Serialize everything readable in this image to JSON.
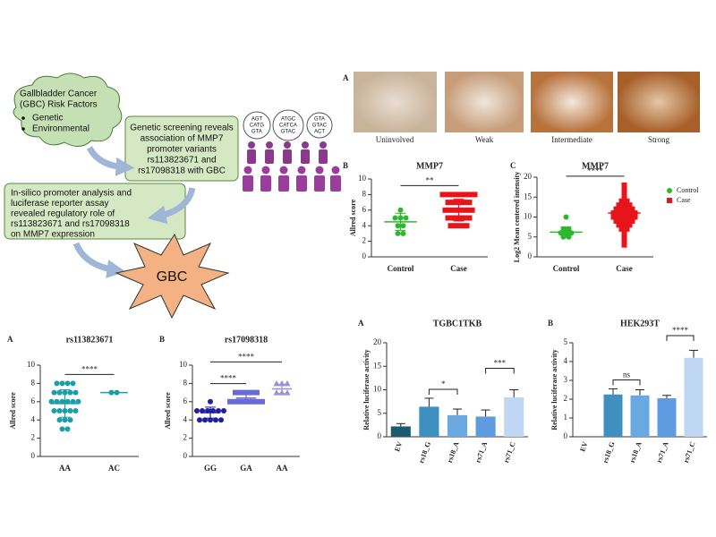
{
  "diagram": {
    "risk_factors": {
      "lines": [
        "Gallbladder Cancer",
        "(GBC) Risk Factors"
      ],
      "bullets": [
        "Genetic",
        "Environmental"
      ]
    },
    "screening": [
      "Genetic screening reveals",
      "association of MMP7",
      "promoter variants",
      "rs113823671 and",
      "rs17098318 with GBC"
    ],
    "assay": [
      "In-silico promoter analysis and",
      "luciferase reporter assay",
      "revealed regulatory role of",
      "rs113823671 and rs17098318",
      "on MMP7 expression"
    ],
    "outcome": "GBC",
    "dna": [
      [
        "AGT",
        "CATG",
        "GTA"
      ],
      [
        "ATGC",
        "CATCA",
        "GTAC"
      ],
      [
        "GTA",
        "GTAC",
        "ACT"
      ]
    ]
  },
  "ihc": {
    "panel": "A",
    "labels": [
      "Uninvolved",
      "Weak",
      "Intermediate",
      "Strong"
    ]
  },
  "chart_data": [
    {
      "type": "strip",
      "panel": "B",
      "title": "MMP7",
      "ylabel": "Allred score",
      "ylim": [
        0,
        10
      ],
      "yticks": [
        0,
        2,
        4,
        6,
        8,
        10
      ],
      "groups": [
        {
          "name": "Control",
          "color": "#2db82d",
          "marker": "circle",
          "values": [
            6,
            5,
            5,
            5,
            4,
            4,
            3,
            3
          ],
          "mean": 4.5,
          "error": 1.1
        },
        {
          "name": "Case",
          "color": "#e8141b",
          "marker": "square",
          "values": [
            8,
            8,
            8,
            8,
            8,
            8,
            8,
            7,
            7,
            7,
            7,
            7,
            6,
            6,
            6,
            6,
            6,
            6,
            5,
            5,
            5,
            5,
            5,
            4,
            4,
            4,
            4
          ],
          "mean": 6.0,
          "error": 1.4
        }
      ],
      "significance": [
        {
          "label": "**",
          "from": 0,
          "to": 1
        }
      ]
    },
    {
      "type": "strip",
      "panel": "C",
      "title": "MMP7",
      "ylabel": "Log2 Mean centered intensity",
      "ylim": [
        0,
        20
      ],
      "yticks": [
        0,
        5,
        10,
        15,
        20
      ],
      "legend": true,
      "groups": [
        {
          "name": "Control",
          "color": "#2db82d",
          "marker": "circle",
          "values": [
            10,
            7,
            7,
            6,
            6,
            6,
            5.5,
            5.5,
            5,
            5
          ],
          "mean": 6.2,
          "error": 1.3
        },
        {
          "name": "Case",
          "color": "#e8141b",
          "marker": "square",
          "values": [
            18,
            17,
            16,
            15,
            14,
            14,
            13,
            13,
            13,
            12,
            12,
            12,
            12,
            11,
            11,
            11,
            11,
            11,
            10,
            10,
            10,
            10,
            10,
            9,
            9,
            9,
            9,
            8,
            8,
            8,
            7,
            7,
            6,
            5,
            4,
            3
          ],
          "mean": 11,
          "error": 2.5
        }
      ],
      "significance": [
        {
          "label": "****",
          "from": 0,
          "to": 1
        }
      ]
    },
    {
      "type": "strip",
      "panel": "A",
      "title": "rs113823671",
      "ylabel": "Allred score",
      "ylim": [
        0,
        10
      ],
      "yticks": [
        0,
        2,
        4,
        6,
        8,
        10
      ],
      "groups": [
        {
          "name": "AA",
          "color": "#1a9fa8",
          "marker": "circle",
          "values": [
            8,
            8,
            8,
            8,
            7,
            7,
            7,
            7,
            7,
            6,
            6,
            6,
            6,
            6,
            6,
            5,
            5,
            5,
            5,
            5,
            4,
            4,
            4,
            3,
            3
          ],
          "mean": 5.8,
          "error": 1.5
        },
        {
          "name": "AC",
          "color": "#1a9fa8",
          "marker": "circle",
          "values": [
            7,
            7
          ],
          "mean": 7,
          "error": 0
        }
      ],
      "significance": [
        {
          "label": "****",
          "from": 0,
          "to": 1
        }
      ]
    },
    {
      "type": "strip",
      "panel": "B",
      "title": "rs17098318",
      "ylabel": "Allred score",
      "ylim": [
        0,
        10
      ],
      "yticks": [
        0,
        2,
        4,
        6,
        8,
        10
      ],
      "groups": [
        {
          "name": "GG",
          "color": "#1f1fa0",
          "marker": "circle",
          "values": [
            6,
            5,
            5,
            5,
            5,
            5,
            5,
            4,
            4,
            4,
            4,
            4
          ],
          "mean": 4.8,
          "error": 0.6
        },
        {
          "name": "GA",
          "color": "#6b6bd6",
          "marker": "square",
          "values": [
            7,
            7,
            7,
            7,
            7,
            6,
            6,
            6,
            6,
            6,
            6,
            6
          ],
          "mean": 6.4,
          "error": 0.5
        },
        {
          "name": "AA",
          "color": "#9b8fd6",
          "marker": "triangle",
          "values": [
            8,
            8,
            8,
            7,
            7,
            7
          ],
          "mean": 7.4,
          "error": 0.5
        }
      ],
      "significance": [
        {
          "label": "****",
          "from": 0,
          "to": 1
        },
        {
          "label": "****",
          "from": 0,
          "to": 2
        }
      ]
    },
    {
      "type": "bar",
      "panel": "A",
      "title": "TGBC1TKB",
      "ylabel": "Relative luciferase activity",
      "ylim": [
        0,
        20
      ],
      "yticks": [
        0,
        5,
        10,
        15,
        20
      ],
      "categories": [
        "EV",
        "rs18_G",
        "rs18_A",
        "rs71_A",
        "rs71_C"
      ],
      "values": [
        2.2,
        6.4,
        4.6,
        4.3,
        8.4
      ],
      "errors": [
        0.6,
        1.8,
        1.3,
        1.4,
        1.6
      ],
      "colors": [
        "#1c5a6e",
        "#3f8fbf",
        "#6aa9e0",
        "#5f9be0",
        "#bfd7f2"
      ],
      "significance": [
        {
          "label": "*",
          "from": 1,
          "to": 2
        },
        {
          "label": "***",
          "from": 3,
          "to": 4
        }
      ]
    },
    {
      "type": "bar",
      "panel": "B",
      "title": "HEK293T",
      "ylabel": "Relative luciferase activity",
      "ylim": [
        0,
        5
      ],
      "yticks": [
        0,
        1,
        2,
        3,
        4,
        5
      ],
      "categories": [
        "EV",
        "rs18_G",
        "rs18_A",
        "rs71_A",
        "rs71_C"
      ],
      "values": [
        0,
        2.25,
        2.2,
        2.05,
        4.2
      ],
      "errors": [
        0,
        0.3,
        0.3,
        0.15,
        0.4
      ],
      "colors": [
        "#1c5a6e",
        "#3f8fbf",
        "#6aa9e0",
        "#5f9be0",
        "#bfd7f2"
      ],
      "significance": [
        {
          "label": "ns",
          "from": 1,
          "to": 2
        },
        {
          "label": "****",
          "from": 3,
          "to": 4
        }
      ]
    }
  ]
}
